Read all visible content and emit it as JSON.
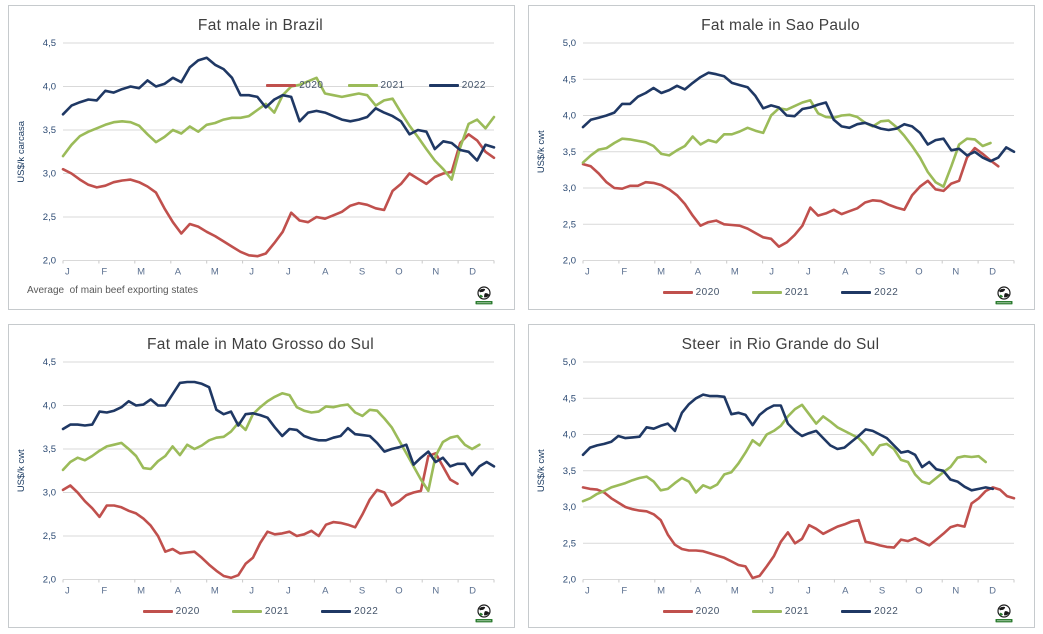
{
  "colors": {
    "grid": "#d9d9d9",
    "axis_tick_text": "#2c4a73",
    "month_text": "#5a6f8f",
    "title_text": "#3f3f3f",
    "legend_text": "#44546a",
    "series_2020": "#c0504d",
    "series_2021": "#9bbb59",
    "series_2022": "#1f3864"
  },
  "logo_name": "globe-logo",
  "chart_data": [
    {
      "type": "line",
      "title": "Fat male in Brazil",
      "ylabel": "US$/k carcasa",
      "ymin": 2.0,
      "ymax": 4.5,
      "ystep": 0.5,
      "ytick_labels": [
        "4,5",
        "4,0",
        "3,5",
        "3,0",
        "2,5",
        "2,0"
      ],
      "months": [
        "J",
        "F",
        "M",
        "A",
        "M",
        "J",
        "J",
        "A",
        "S",
        "O",
        "N",
        "D"
      ],
      "legend_position": "top-right",
      "footnote": "Average  of main beef exporting states",
      "series": [
        {
          "name": "2020",
          "color": "#c0504d",
          "values": [
            3.05,
            3.0,
            2.93,
            2.87,
            2.84,
            2.86,
            2.9,
            2.92,
            2.93,
            2.9,
            2.85,
            2.78,
            2.6,
            2.44,
            2.31,
            2.42,
            2.39,
            2.33,
            2.28,
            2.22,
            2.16,
            2.1,
            2.06,
            2.05,
            2.08,
            2.2,
            2.33,
            2.55,
            2.46,
            2.44,
            2.5,
            2.48,
            2.52,
            2.56,
            2.63,
            2.66,
            2.64,
            2.6,
            2.58,
            2.8,
            2.88,
            3.0,
            2.94,
            2.88,
            2.96,
            3.0,
            3.02,
            3.35,
            3.45,
            3.38,
            3.25,
            3.18
          ]
        },
        {
          "name": "2021",
          "color": "#9bbb59",
          "values": [
            3.2,
            3.33,
            3.43,
            3.48,
            3.52,
            3.56,
            3.59,
            3.6,
            3.59,
            3.55,
            3.45,
            3.36,
            3.42,
            3.5,
            3.46,
            3.54,
            3.48,
            3.56,
            3.58,
            3.62,
            3.64,
            3.64,
            3.66,
            3.73,
            3.8,
            3.7,
            3.9,
            4.0,
            4.02,
            4.06,
            4.1,
            3.92,
            3.9,
            3.88,
            3.9,
            3.92,
            3.9,
            3.78,
            3.84,
            3.86,
            3.7,
            3.55,
            3.42,
            3.28,
            3.15,
            3.05,
            2.93,
            3.3,
            3.57,
            3.62,
            3.52,
            3.65
          ]
        },
        {
          "name": "2022",
          "color": "#1f3864",
          "values": [
            3.68,
            3.78,
            3.82,
            3.85,
            3.84,
            3.95,
            3.93,
            3.97,
            4.0,
            3.98,
            4.07,
            4.0,
            4.03,
            4.1,
            4.05,
            4.22,
            4.3,
            4.33,
            4.25,
            4.2,
            4.1,
            3.9,
            3.9,
            3.88,
            3.76,
            3.85,
            3.9,
            3.88,
            3.6,
            3.7,
            3.72,
            3.7,
            3.66,
            3.62,
            3.6,
            3.62,
            3.65,
            3.75,
            3.7,
            3.66,
            3.6,
            3.45,
            3.5,
            3.48,
            3.28,
            3.37,
            3.35,
            3.27,
            3.25,
            3.15,
            3.33,
            3.3
          ]
        }
      ]
    },
    {
      "type": "line",
      "title": "Fat male in Sao Paulo",
      "ylabel": "US$/k cwt",
      "ymin": 2.0,
      "ymax": 5.0,
      "ystep": 0.5,
      "ytick_labels": [
        "5,0",
        "4,5",
        "4,0",
        "3,5",
        "3,0",
        "2,5",
        "2,0"
      ],
      "months": [
        "J",
        "F",
        "M",
        "A",
        "M",
        "J",
        "J",
        "A",
        "S",
        "O",
        "N",
        "D"
      ],
      "legend_position": "bottom",
      "series": [
        {
          "name": "2020",
          "color": "#c0504d",
          "values": [
            3.33,
            3.3,
            3.2,
            3.08,
            3.0,
            2.99,
            3.03,
            3.03,
            3.08,
            3.07,
            3.04,
            2.98,
            2.9,
            2.78,
            2.62,
            2.48,
            2.53,
            2.55,
            2.5,
            2.49,
            2.48,
            2.44,
            2.38,
            2.32,
            2.3,
            2.19,
            2.25,
            2.35,
            2.48,
            2.73,
            2.62,
            2.65,
            2.7,
            2.64,
            2.68,
            2.72,
            2.8,
            2.83,
            2.82,
            2.77,
            2.73,
            2.7,
            2.9,
            3.02,
            3.1,
            2.98,
            2.96,
            3.06,
            3.1,
            3.42,
            3.55,
            3.47,
            3.38,
            3.3
          ]
        },
        {
          "name": "2021",
          "color": "#9bbb59",
          "values": [
            3.35,
            3.45,
            3.53,
            3.55,
            3.62,
            3.68,
            3.67,
            3.65,
            3.63,
            3.58,
            3.47,
            3.45,
            3.52,
            3.58,
            3.71,
            3.6,
            3.66,
            3.63,
            3.74,
            3.74,
            3.78,
            3.83,
            3.79,
            3.76,
            4.0,
            4.1,
            4.08,
            4.13,
            4.18,
            4.21,
            4.03,
            3.98,
            3.97,
            4.0,
            4.01,
            3.98,
            3.9,
            3.85,
            3.92,
            3.93,
            3.84,
            3.72,
            3.58,
            3.42,
            3.22,
            3.08,
            3.02,
            3.3,
            3.6,
            3.68,
            3.67,
            3.58,
            3.62
          ]
        },
        {
          "name": "2022",
          "color": "#1f3864",
          "values": [
            3.84,
            3.94,
            3.97,
            4.0,
            4.04,
            4.16,
            4.16,
            4.26,
            4.31,
            4.38,
            4.31,
            4.35,
            4.41,
            4.36,
            4.45,
            4.53,
            4.59,
            4.57,
            4.54,
            4.45,
            4.42,
            4.39,
            4.27,
            4.1,
            4.14,
            4.11,
            4.0,
            3.99,
            4.09,
            4.11,
            4.15,
            4.18,
            3.94,
            3.85,
            3.83,
            3.88,
            3.9,
            3.86,
            3.82,
            3.8,
            3.82,
            3.88,
            3.85,
            3.76,
            3.6,
            3.66,
            3.68,
            3.52,
            3.54,
            3.45,
            3.5,
            3.42,
            3.37,
            3.42,
            3.56,
            3.5
          ]
        }
      ]
    },
    {
      "type": "line",
      "title": "Fat male in Mato Grosso do Sul",
      "ylabel": "US$/k cwt",
      "ymin": 2.0,
      "ymax": 4.5,
      "ystep": 0.5,
      "ytick_labels": [
        "4,5",
        "4,0",
        "3,5",
        "3,0",
        "2,5",
        "2,0"
      ],
      "months": [
        "J",
        "F",
        "M",
        "A",
        "M",
        "J",
        "J",
        "A",
        "S",
        "O",
        "N",
        "D"
      ],
      "legend_position": "bottom",
      "series": [
        {
          "name": "2020",
          "color": "#c0504d",
          "values": [
            3.03,
            3.08,
            3.0,
            2.9,
            2.82,
            2.72,
            2.85,
            2.85,
            2.83,
            2.79,
            2.76,
            2.7,
            2.62,
            2.5,
            2.32,
            2.35,
            2.3,
            2.31,
            2.32,
            2.25,
            2.17,
            2.1,
            2.04,
            2.02,
            2.05,
            2.18,
            2.25,
            2.42,
            2.55,
            2.52,
            2.53,
            2.55,
            2.5,
            2.52,
            2.56,
            2.5,
            2.63,
            2.66,
            2.65,
            2.63,
            2.6,
            2.75,
            2.92,
            3.03,
            3.0,
            2.85,
            2.9,
            2.97,
            3.0,
            3.02,
            3.42,
            3.45,
            3.3,
            3.15,
            3.1
          ]
        },
        {
          "name": "2021",
          "color": "#9bbb59",
          "values": [
            3.26,
            3.35,
            3.4,
            3.37,
            3.42,
            3.48,
            3.53,
            3.55,
            3.57,
            3.5,
            3.42,
            3.28,
            3.27,
            3.36,
            3.42,
            3.53,
            3.43,
            3.55,
            3.5,
            3.54,
            3.6,
            3.63,
            3.64,
            3.7,
            3.8,
            3.72,
            3.9,
            3.98,
            4.05,
            4.1,
            4.14,
            4.12,
            3.98,
            3.94,
            3.92,
            3.93,
            3.99,
            3.98,
            4.0,
            4.01,
            3.92,
            3.88,
            3.95,
            3.94,
            3.85,
            3.75,
            3.6,
            3.45,
            3.3,
            3.15,
            3.02,
            3.42,
            3.58,
            3.63,
            3.65,
            3.55,
            3.5,
            3.55
          ]
        },
        {
          "name": "2022",
          "color": "#1f3864",
          "values": [
            3.73,
            3.78,
            3.78,
            3.77,
            3.78,
            3.93,
            3.92,
            3.94,
            3.98,
            4.05,
            4.0,
            4.01,
            4.07,
            4.0,
            4.0,
            4.13,
            4.26,
            4.27,
            4.27,
            4.25,
            4.21,
            3.95,
            3.9,
            3.93,
            3.77,
            3.9,
            3.91,
            3.89,
            3.86,
            3.75,
            3.65,
            3.73,
            3.72,
            3.65,
            3.62,
            3.6,
            3.6,
            3.63,
            3.65,
            3.74,
            3.67,
            3.66,
            3.65,
            3.57,
            3.47,
            3.5,
            3.52,
            3.55,
            3.32,
            3.4,
            3.47,
            3.35,
            3.4,
            3.3,
            3.33,
            3.33,
            3.2,
            3.3,
            3.35,
            3.3
          ]
        }
      ]
    },
    {
      "type": "line",
      "title": "Steer  in Rio Grande do Sul",
      "ylabel": "US$/k cwt",
      "ymin": 2.0,
      "ymax": 5.0,
      "ystep": 0.5,
      "ytick_labels": [
        "5,0",
        "4,5",
        "4,0",
        "3,5",
        "3,0",
        "2,5",
        "2,0"
      ],
      "months": [
        "J",
        "F",
        "M",
        "A",
        "M",
        "J",
        "J",
        "A",
        "S",
        "O",
        "N",
        "D"
      ],
      "legend_position": "bottom",
      "series": [
        {
          "name": "2020",
          "color": "#c0504d",
          "values": [
            3.27,
            3.25,
            3.24,
            3.2,
            3.12,
            3.06,
            3.0,
            2.97,
            2.95,
            2.94,
            2.9,
            2.82,
            2.62,
            2.48,
            2.42,
            2.4,
            2.4,
            2.39,
            2.36,
            2.33,
            2.3,
            2.25,
            2.2,
            2.18,
            2.02,
            2.05,
            2.18,
            2.32,
            2.52,
            2.65,
            2.5,
            2.56,
            2.75,
            2.7,
            2.63,
            2.68,
            2.73,
            2.76,
            2.8,
            2.82,
            2.52,
            2.5,
            2.47,
            2.45,
            2.44,
            2.55,
            2.53,
            2.57,
            2.52,
            2.47,
            2.55,
            2.63,
            2.72,
            2.75,
            2.73,
            3.05,
            3.12,
            3.22,
            3.27,
            3.24,
            3.15,
            3.12
          ]
        },
        {
          "name": "2021",
          "color": "#9bbb59",
          "values": [
            3.08,
            3.12,
            3.18,
            3.22,
            3.27,
            3.3,
            3.33,
            3.37,
            3.4,
            3.42,
            3.35,
            3.23,
            3.25,
            3.33,
            3.4,
            3.35,
            3.2,
            3.3,
            3.26,
            3.31,
            3.45,
            3.48,
            3.6,
            3.75,
            3.92,
            3.85,
            4.0,
            4.05,
            4.12,
            4.25,
            4.35,
            4.41,
            4.28,
            4.15,
            4.25,
            4.18,
            4.1,
            4.05,
            4.0,
            3.95,
            3.85,
            3.72,
            3.85,
            3.87,
            3.8,
            3.65,
            3.62,
            3.45,
            3.35,
            3.32,
            3.4,
            3.48,
            3.55,
            3.68,
            3.7,
            3.69,
            3.7,
            3.62
          ]
        },
        {
          "name": "2022",
          "color": "#1f3864",
          "values": [
            3.72,
            3.82,
            3.85,
            3.87,
            3.9,
            3.98,
            3.95,
            3.96,
            3.97,
            4.1,
            4.08,
            4.12,
            4.15,
            4.05,
            4.3,
            4.42,
            4.5,
            4.55,
            4.53,
            4.53,
            4.52,
            4.28,
            4.3,
            4.27,
            4.13,
            4.27,
            4.35,
            4.4,
            4.4,
            4.15,
            4.05,
            3.98,
            4.02,
            4.05,
            3.95,
            3.85,
            3.8,
            3.82,
            3.9,
            3.98,
            4.07,
            4.05,
            4.0,
            3.95,
            3.85,
            3.75,
            3.77,
            3.72,
            3.55,
            3.62,
            3.52,
            3.5,
            3.38,
            3.35,
            3.28,
            3.23,
            3.25,
            3.27,
            3.25
          ]
        }
      ]
    }
  ]
}
